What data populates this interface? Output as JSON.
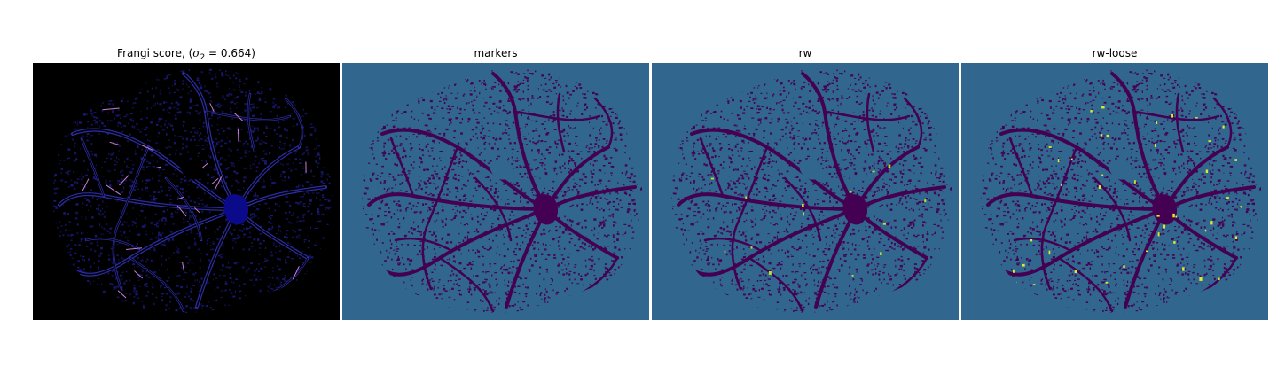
{
  "figure": {
    "panels": [
      {
        "id": "frangi",
        "title_prefix": "Frangi score, (",
        "title_sigma": "σ",
        "title_sub": "2",
        "title_suffix": " = 0.664)",
        "colors": {
          "background": "#000000",
          "vessel": "#1a1a7a",
          "edge": "#2c2ca8",
          "highlight": "#c87fd0"
        }
      },
      {
        "id": "markers",
        "title": "markers",
        "colors": {
          "background": "#31668e",
          "vessel": "#440154"
        }
      },
      {
        "id": "rw",
        "title": "rw",
        "colors": {
          "background": "#31668e",
          "vessel": "#440154",
          "highlight": "#b7de28"
        }
      },
      {
        "id": "rw-loose",
        "title": "rw-loose",
        "colors": {
          "background": "#31668e",
          "vessel": "#440154",
          "highlight": "#d9ec2a"
        }
      }
    ]
  }
}
